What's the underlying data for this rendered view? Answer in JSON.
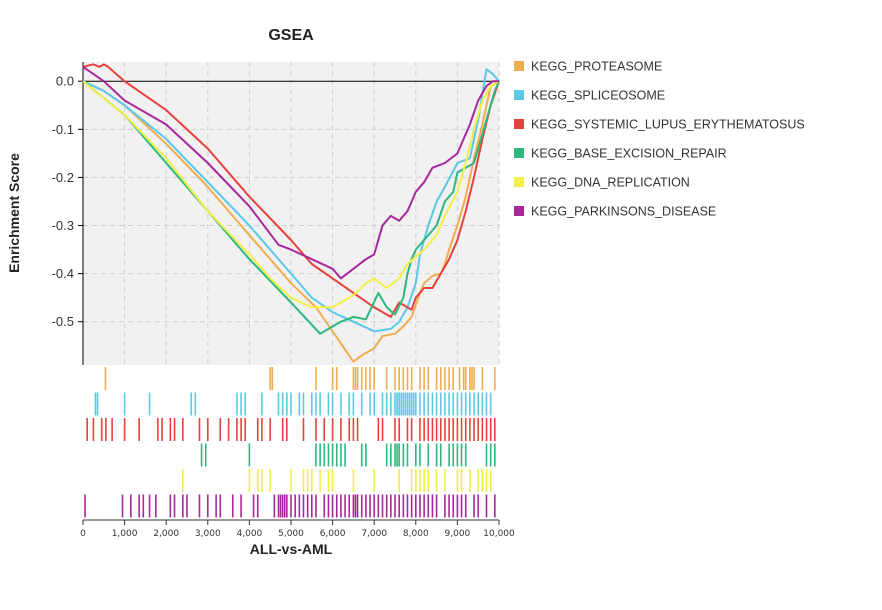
{
  "chart_data": {
    "type": "line",
    "title": "GSEA",
    "xlabel": "ALL-vs-AML",
    "ylabel": "Enrichment Score",
    "xlim": [
      0,
      10000
    ],
    "ylim": [
      -0.59,
      0.04
    ],
    "yticks": [
      0.0,
      -0.1,
      -0.2,
      -0.3,
      -0.4,
      -0.5
    ],
    "ytick_labels": [
      "0.0",
      "-0.1",
      "-0.2",
      "-0.3",
      "-0.4",
      "-0.5"
    ],
    "xticks": [
      0,
      1000,
      2000,
      3000,
      4000,
      5000,
      6000,
      7000,
      8000,
      9000,
      10000
    ],
    "xtick_labels": [
      "0",
      "1,000",
      "2,000",
      "3,000",
      "4,000",
      "5,000",
      "6,000",
      "7,000",
      "8,000",
      "9,000",
      "10,000"
    ],
    "grid": true,
    "legend_position": "right",
    "series": [
      {
        "name": "KEGG_PROTEASOME",
        "color": "#f0ad4e",
        "points": [
          [
            0,
            0
          ],
          [
            500,
            -0.02
          ],
          [
            1000,
            -0.05
          ],
          [
            2000,
            -0.13
          ],
          [
            3000,
            -0.22
          ],
          [
            4000,
            -0.32
          ],
          [
            5000,
            -0.42
          ],
          [
            5600,
            -0.47
          ],
          [
            6200,
            -0.545
          ],
          [
            6500,
            -0.583
          ],
          [
            6700,
            -0.57
          ],
          [
            7000,
            -0.555
          ],
          [
            7200,
            -0.53
          ],
          [
            7500,
            -0.525
          ],
          [
            7700,
            -0.51
          ],
          [
            7900,
            -0.49
          ],
          [
            8100,
            -0.44
          ],
          [
            8200,
            -0.42
          ],
          [
            8400,
            -0.405
          ],
          [
            8600,
            -0.4
          ],
          [
            8700,
            -0.38
          ],
          [
            8800,
            -0.35
          ],
          [
            9000,
            -0.3
          ],
          [
            9200,
            -0.24
          ],
          [
            9400,
            -0.16
          ],
          [
            9600,
            -0.09
          ],
          [
            9700,
            -0.05
          ],
          [
            9800,
            -0.01
          ],
          [
            10000,
            0
          ]
        ],
        "hits": [
          540,
          4500,
          4550,
          5600,
          6000,
          6100,
          6500,
          6550,
          6600,
          6700,
          6800,
          6900,
          7000,
          7300,
          7500,
          7600,
          7700,
          7800,
          7900,
          8100,
          8200,
          8300,
          8500,
          8600,
          8700,
          8800,
          8900,
          9050,
          9150,
          9200,
          9300,
          9350,
          9400,
          9600,
          9900
        ]
      },
      {
        "name": "KEGG_SPLICEOSOME",
        "color": "#5bc8e8",
        "points": [
          [
            0,
            0
          ],
          [
            500,
            -0.02
          ],
          [
            1000,
            -0.05
          ],
          [
            2000,
            -0.12
          ],
          [
            3000,
            -0.21
          ],
          [
            4000,
            -0.3
          ],
          [
            5000,
            -0.4
          ],
          [
            5500,
            -0.45
          ],
          [
            6000,
            -0.48
          ],
          [
            6500,
            -0.5
          ],
          [
            7000,
            -0.52
          ],
          [
            7400,
            -0.515
          ],
          [
            7600,
            -0.5
          ],
          [
            7800,
            -0.47
          ],
          [
            8000,
            -0.42
          ],
          [
            8100,
            -0.36
          ],
          [
            8300,
            -0.3
          ],
          [
            8500,
            -0.25
          ],
          [
            8700,
            -0.22
          ],
          [
            9000,
            -0.17
          ],
          [
            9300,
            -0.16
          ],
          [
            9500,
            -0.08
          ],
          [
            9700,
            0.025
          ],
          [
            9850,
            0.015
          ],
          [
            10000,
            0
          ]
        ],
        "hits": [
          300,
          350,
          1000,
          1600,
          2600,
          2700,
          3700,
          3800,
          3900,
          4300,
          4700,
          4800,
          4900,
          5000,
          5200,
          5300,
          5500,
          5600,
          5700,
          5900,
          6000,
          6200,
          6400,
          6500,
          6700,
          6900,
          7000,
          7200,
          7300,
          7400,
          7500,
          7550,
          7600,
          7650,
          7700,
          7750,
          7800,
          7850,
          7900,
          7950,
          8000,
          8100,
          8200,
          8300,
          8400,
          8500,
          8600,
          8700,
          8800,
          8900,
          9000,
          9100,
          9200,
          9300,
          9400,
          9500,
          9600,
          9700,
          9800
        ]
      },
      {
        "name": "KEGG_SYSTEMIC_LUPUS_ERYTHEMATOSUS",
        "color": "#e8413d",
        "points": [
          [
            0,
            0.03
          ],
          [
            250,
            0.035
          ],
          [
            400,
            0.03
          ],
          [
            500,
            0.035
          ],
          [
            600,
            0.03
          ],
          [
            1000,
            0.0
          ],
          [
            1500,
            -0.03
          ],
          [
            2000,
            -0.06
          ],
          [
            3000,
            -0.14
          ],
          [
            4000,
            -0.24
          ],
          [
            5000,
            -0.33
          ],
          [
            5500,
            -0.38
          ],
          [
            6000,
            -0.41
          ],
          [
            6500,
            -0.44
          ],
          [
            7000,
            -0.47
          ],
          [
            7400,
            -0.49
          ],
          [
            7600,
            -0.46
          ],
          [
            7900,
            -0.475
          ],
          [
            8000,
            -0.45
          ],
          [
            8200,
            -0.43
          ],
          [
            8400,
            -0.43
          ],
          [
            8600,
            -0.4
          ],
          [
            8800,
            -0.37
          ],
          [
            9000,
            -0.33
          ],
          [
            9200,
            -0.27
          ],
          [
            9400,
            -0.2
          ],
          [
            9600,
            -0.12
          ],
          [
            9800,
            -0.05
          ],
          [
            10000,
            0
          ]
        ],
        "hits": [
          100,
          250,
          450,
          550,
          700,
          1000,
          1350,
          1800,
          1900,
          2100,
          2200,
          2400,
          2800,
          3000,
          3300,
          3500,
          3700,
          3800,
          3900,
          4200,
          4300,
          4500,
          4800,
          4900,
          5300,
          5600,
          5800,
          6000,
          6200,
          6400,
          6500,
          6600,
          7100,
          7200,
          7500,
          7600,
          7800,
          7900,
          8100,
          8200,
          8300,
          8400,
          8500,
          8600,
          8700,
          8800,
          8900,
          9000,
          9100,
          9200,
          9300,
          9400,
          9500,
          9600,
          9700,
          9800,
          9900
        ]
      },
      {
        "name": "KEGG_BASE_EXCISION_REPAIR",
        "color": "#2db87d",
        "points": [
          [
            0,
            0
          ],
          [
            1000,
            -0.07
          ],
          [
            2000,
            -0.17
          ],
          [
            3000,
            -0.27
          ],
          [
            4000,
            -0.37
          ],
          [
            5000,
            -0.46
          ],
          [
            5700,
            -0.525
          ],
          [
            6200,
            -0.5
          ],
          [
            6500,
            -0.49
          ],
          [
            6800,
            -0.495
          ],
          [
            7100,
            -0.44
          ],
          [
            7300,
            -0.47
          ],
          [
            7500,
            -0.485
          ],
          [
            7700,
            -0.45
          ],
          [
            7800,
            -0.4
          ],
          [
            7900,
            -0.37
          ],
          [
            8000,
            -0.35
          ],
          [
            8200,
            -0.33
          ],
          [
            8500,
            -0.3
          ],
          [
            8700,
            -0.25
          ],
          [
            8900,
            -0.23
          ],
          [
            9000,
            -0.19
          ],
          [
            9200,
            -0.18
          ],
          [
            9400,
            -0.17
          ],
          [
            9700,
            -0.08
          ],
          [
            9900,
            -0.02
          ],
          [
            10000,
            0
          ]
        ],
        "hits": [
          2850,
          2950,
          4000,
          5600,
          5700,
          5800,
          5900,
          6000,
          6100,
          6200,
          6300,
          6700,
          6800,
          7300,
          7400,
          7500,
          7550,
          7600,
          7700,
          7800,
          8000,
          8100,
          8300,
          8500,
          8600,
          8800,
          8900,
          9000,
          9100,
          9200,
          9700,
          9800,
          9900
        ]
      },
      {
        "name": "KEGG_DNA_REPLICATION",
        "color": "#f2ef46",
        "points": [
          [
            0,
            0
          ],
          [
            1000,
            -0.07
          ],
          [
            2000,
            -0.16
          ],
          [
            3000,
            -0.27
          ],
          [
            4000,
            -0.36
          ],
          [
            4500,
            -0.41
          ],
          [
            5000,
            -0.45
          ],
          [
            5500,
            -0.47
          ],
          [
            6000,
            -0.47
          ],
          [
            6500,
            -0.445
          ],
          [
            6800,
            -0.42
          ],
          [
            7000,
            -0.41
          ],
          [
            7300,
            -0.43
          ],
          [
            7600,
            -0.41
          ],
          [
            7800,
            -0.38
          ],
          [
            8200,
            -0.35
          ],
          [
            8500,
            -0.32
          ],
          [
            8700,
            -0.28
          ],
          [
            9000,
            -0.23
          ],
          [
            9200,
            -0.17
          ],
          [
            9400,
            -0.1
          ],
          [
            9600,
            -0.04
          ],
          [
            9800,
            -0.01
          ],
          [
            10000,
            0
          ]
        ],
        "hits": [
          2400,
          4000,
          4200,
          4300,
          4500,
          5000,
          5300,
          5400,
          5500,
          5700,
          5900,
          6000,
          6500,
          7000,
          7600,
          7900,
          8000,
          8100,
          8200,
          8300,
          8500,
          8700,
          9000,
          9100,
          9300,
          9500,
          9600,
          9700,
          9800
        ]
      },
      {
        "name": "KEGG_PARKINSONS_DISEASE",
        "color": "#a8279b",
        "points": [
          [
            0,
            0.03
          ],
          [
            500,
            0.0
          ],
          [
            1000,
            -0.04
          ],
          [
            2000,
            -0.09
          ],
          [
            3000,
            -0.17
          ],
          [
            4000,
            -0.26
          ],
          [
            4700,
            -0.34
          ],
          [
            5000,
            -0.35
          ],
          [
            5500,
            -0.37
          ],
          [
            6000,
            -0.39
          ],
          [
            6200,
            -0.41
          ],
          [
            6500,
            -0.39
          ],
          [
            6800,
            -0.37
          ],
          [
            7000,
            -0.36
          ],
          [
            7200,
            -0.3
          ],
          [
            7400,
            -0.28
          ],
          [
            7600,
            -0.29
          ],
          [
            7800,
            -0.27
          ],
          [
            8000,
            -0.23
          ],
          [
            8200,
            -0.21
          ],
          [
            8400,
            -0.18
          ],
          [
            8700,
            -0.17
          ],
          [
            9000,
            -0.15
          ],
          [
            9300,
            -0.09
          ],
          [
            9500,
            -0.04
          ],
          [
            9700,
            -0.01
          ],
          [
            9850,
            0.0
          ],
          [
            10000,
            0
          ]
        ],
        "hits": [
          50,
          950,
          1150,
          1350,
          1450,
          1600,
          1750,
          2100,
          2200,
          2400,
          2500,
          2800,
          3000,
          3200,
          3300,
          3600,
          3800,
          4100,
          4200,
          4600,
          4700,
          4750,
          4800,
          4850,
          4900,
          5000,
          5100,
          5200,
          5300,
          5400,
          5500,
          5600,
          5800,
          5900,
          6000,
          6100,
          6200,
          6300,
          6400,
          6500,
          6550,
          6600,
          6700,
          6800,
          6900,
          7000,
          7100,
          7200,
          7300,
          7400,
          7500,
          7600,
          7700,
          7800,
          7900,
          8000,
          8100,
          8200,
          8300,
          8400,
          8500,
          8700,
          8800,
          8900,
          9000,
          9100,
          9200,
          9400,
          9500,
          9700,
          9900
        ]
      }
    ]
  }
}
